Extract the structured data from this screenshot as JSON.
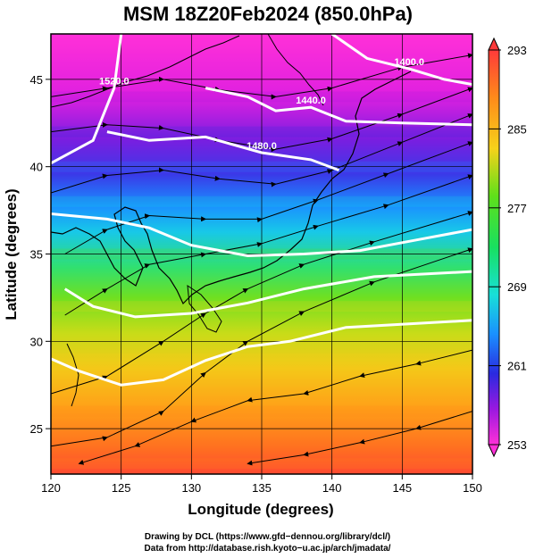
{
  "chart_data": {
    "type": "heatmap",
    "title": "MSM 18Z20Feb2024 (850.0hPa)",
    "xlabel": "Longitude (degrees)",
    "ylabel": "Latitude  (degrees)",
    "xlim": [
      120,
      150
    ],
    "ylim": [
      22.4,
      47.6
    ],
    "xticks": [
      120,
      125,
      130,
      135,
      140,
      145,
      150
    ],
    "yticks": [
      25,
      30,
      35,
      40,
      45
    ],
    "colorbar": {
      "range": [
        253,
        293
      ],
      "tick_labels": [
        "293",
        "285",
        "277",
        "269",
        "261",
        "253"
      ],
      "placement": "right",
      "colors": [
        "#ff3a3a",
        "#ff8a1a",
        "#f6d21a",
        "#5fe01a",
        "#18e060",
        "#18e0d8",
        "#1a90ff",
        "#2a2ae0",
        "#9a18e0",
        "#ff30d8"
      ]
    },
    "temperature_gradient_south_to_north": [
      {
        "lat": 23,
        "temp": 290
      },
      {
        "lat": 26,
        "temp": 287
      },
      {
        "lat": 29,
        "temp": 285
      },
      {
        "lat": 32,
        "temp": 282
      },
      {
        "lat": 35,
        "temp": 278
      },
      {
        "lat": 38,
        "temp": 272
      },
      {
        "lat": 40,
        "temp": 267
      },
      {
        "lat": 42,
        "temp": 261
      },
      {
        "lat": 44,
        "temp": 256
      },
      {
        "lat": 47,
        "temp": 253
      }
    ],
    "height_contours": [
      {
        "label": "1520.0",
        "points": [
          [
            120,
            40.2
          ],
          [
            123,
            41.5
          ],
          [
            124.5,
            44.5
          ],
          [
            125,
            47.6
          ]
        ]
      },
      {
        "label": "1480.0",
        "points": [
          [
            124,
            42
          ],
          [
            127,
            41.5
          ],
          [
            131,
            41.7
          ],
          [
            135,
            40.8
          ],
          [
            138.5,
            40.4
          ],
          [
            140.5,
            39.8
          ]
        ]
      },
      {
        "label": "1440.0",
        "points": [
          [
            131,
            44.5
          ],
          [
            134,
            44
          ],
          [
            136,
            43.2
          ],
          [
            138.5,
            43.4
          ],
          [
            141,
            42.6
          ],
          [
            145,
            42.5
          ],
          [
            150,
            42.4
          ]
        ]
      },
      {
        "label": "1400.0",
        "points": [
          [
            140,
            47.6
          ],
          [
            142.5,
            46.2
          ],
          [
            145.5,
            45.6
          ],
          [
            148,
            45
          ],
          [
            150,
            44.7
          ]
        ]
      },
      {
        "label": "",
        "points": [
          [
            120,
            37.3
          ],
          [
            124,
            37
          ],
          [
            127,
            36.5
          ],
          [
            130,
            35.5
          ],
          [
            134,
            34.9
          ],
          [
            138,
            35
          ],
          [
            142,
            35.2
          ],
          [
            146,
            35.8
          ],
          [
            150,
            36.4
          ]
        ]
      },
      {
        "label": "",
        "points": [
          [
            121,
            33
          ],
          [
            123,
            32
          ],
          [
            126,
            31.4
          ],
          [
            130,
            31.6
          ],
          [
            134,
            32.2
          ],
          [
            138,
            33
          ],
          [
            143,
            33.7
          ],
          [
            150,
            34
          ]
        ]
      },
      {
        "label": "",
        "points": [
          [
            120,
            29
          ],
          [
            122,
            28.3
          ],
          [
            125,
            27.5
          ],
          [
            128,
            27.8
          ],
          [
            131,
            28.9
          ],
          [
            134,
            29.7
          ],
          [
            137,
            30
          ],
          [
            141,
            30.8
          ],
          [
            150,
            31.2
          ]
        ]
      }
    ],
    "wind_streamlines": [
      {
        "points": [
          [
            120,
            44
          ],
          [
            124,
            44.5
          ],
          [
            128,
            45
          ],
          [
            132,
            44.4
          ],
          [
            136,
            44
          ],
          [
            140,
            44.5
          ],
          [
            145,
            45.7
          ],
          [
            150,
            46.4
          ]
        ]
      },
      {
        "points": [
          [
            120,
            42
          ],
          [
            124,
            42.4
          ],
          [
            128,
            42.2
          ],
          [
            132,
            41.5
          ],
          [
            136,
            41
          ],
          [
            140,
            41.6
          ],
          [
            145,
            43
          ],
          [
            150,
            44.5
          ]
        ]
      },
      {
        "points": [
          [
            120,
            38.5
          ],
          [
            124,
            39.5
          ],
          [
            128,
            39.8
          ],
          [
            132,
            39.3
          ],
          [
            136,
            39
          ],
          [
            140,
            39.8
          ],
          [
            145,
            41.4
          ],
          [
            150,
            43
          ]
        ]
      },
      {
        "points": [
          [
            121,
            35
          ],
          [
            124,
            36.4
          ],
          [
            127,
            37.2
          ],
          [
            131,
            37
          ],
          [
            135,
            37
          ],
          [
            139,
            38.1
          ],
          [
            144,
            39.6
          ],
          [
            150,
            41.4
          ]
        ]
      },
      {
        "points": [
          [
            121,
            31.5
          ],
          [
            124,
            33
          ],
          [
            127,
            34.4
          ],
          [
            131,
            35
          ],
          [
            135,
            35.6
          ],
          [
            139,
            36.6
          ],
          [
            144,
            37.8
          ],
          [
            150,
            39.5
          ]
        ]
      },
      {
        "points": [
          [
            120,
            27
          ],
          [
            124,
            28
          ],
          [
            128,
            30
          ],
          [
            131,
            31.6
          ],
          [
            134,
            33
          ],
          [
            138,
            34.4
          ],
          [
            143,
            35.7
          ],
          [
            150,
            37.4
          ]
        ]
      },
      {
        "points": [
          [
            120,
            24
          ],
          [
            124,
            24.5
          ],
          [
            128,
            26
          ],
          [
            131,
            28.2
          ],
          [
            134,
            30
          ],
          [
            138,
            31.7
          ],
          [
            143,
            33.4
          ],
          [
            150,
            35.3
          ]
        ]
      },
      {
        "points": [
          [
            150,
            29.5
          ],
          [
            146,
            28.7
          ],
          [
            142,
            28
          ],
          [
            138,
            27
          ],
          [
            134,
            26.6
          ],
          [
            130,
            25.4
          ],
          [
            126,
            24
          ],
          [
            122,
            23
          ]
        ]
      },
      {
        "points": [
          [
            150,
            26
          ],
          [
            146,
            25
          ],
          [
            142,
            24.2
          ],
          [
            138,
            23.5
          ],
          [
            134,
            23
          ]
        ]
      }
    ]
  },
  "footer": {
    "line1": "Drawing by DCL (https://www.gfd−dennou.org/library/dcl/)",
    "line2": "Data from http://database.rish.kyoto−u.ac.jp/arch/jmadata/"
  }
}
